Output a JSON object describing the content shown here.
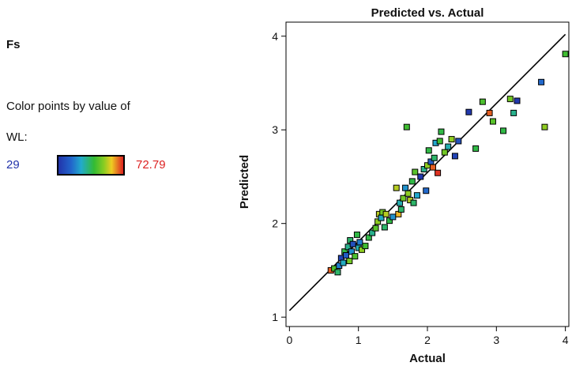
{
  "response": {
    "title": "Fs"
  },
  "legend": {
    "caption": "Color points by value of",
    "variable": "WL:",
    "min_label": "29",
    "max_label": "72.79",
    "min_value": 29,
    "max_value": 72.79,
    "colors": {
      "min": "#2233aa",
      "mid": "#33bb33",
      "max": "#dd2222"
    }
  },
  "chart_data": {
    "type": "scatter",
    "title": "Predicted vs. Actual",
    "xlabel": "Actual",
    "ylabel": "Predicted",
    "xlim": [
      -0.05,
      4.05
    ],
    "ylim": [
      0.9,
      4.15
    ],
    "xticks": [
      "0",
      "1",
      "2",
      "3",
      "4"
    ],
    "yticks": [
      "1",
      "2",
      "3",
      "4"
    ],
    "xtick_values": [
      0,
      1,
      2,
      3,
      4
    ],
    "ytick_values": [
      1,
      2,
      3,
      4
    ],
    "reference_line": {
      "from": [
        0,
        1.07
      ],
      "to": [
        4,
        4.02
      ]
    },
    "grid": false,
    "points": [
      {
        "x": 0.6,
        "y": 1.5,
        "c": 70
      },
      {
        "x": 0.65,
        "y": 1.52,
        "c": 55
      },
      {
        "x": 0.7,
        "y": 1.48,
        "c": 50
      },
      {
        "x": 0.72,
        "y": 1.55,
        "c": 40
      },
      {
        "x": 0.75,
        "y": 1.63,
        "c": 32
      },
      {
        "x": 0.78,
        "y": 1.58,
        "c": 45
      },
      {
        "x": 0.8,
        "y": 1.7,
        "c": 52
      },
      {
        "x": 0.82,
        "y": 1.66,
        "c": 36
      },
      {
        "x": 0.85,
        "y": 1.75,
        "c": 48
      },
      {
        "x": 0.87,
        "y": 1.6,
        "c": 58
      },
      {
        "x": 0.88,
        "y": 1.82,
        "c": 50
      },
      {
        "x": 0.9,
        "y": 1.7,
        "c": 42
      },
      {
        "x": 0.92,
        "y": 1.78,
        "c": 34
      },
      {
        "x": 0.95,
        "y": 1.65,
        "c": 55
      },
      {
        "x": 0.98,
        "y": 1.88,
        "c": 52
      },
      {
        "x": 1.0,
        "y": 1.74,
        "c": 46
      },
      {
        "x": 1.02,
        "y": 1.8,
        "c": 40
      },
      {
        "x": 1.05,
        "y": 1.72,
        "c": 60
      },
      {
        "x": 1.1,
        "y": 1.76,
        "c": 54
      },
      {
        "x": 1.15,
        "y": 1.85,
        "c": 52
      },
      {
        "x": 1.2,
        "y": 1.9,
        "c": 48
      },
      {
        "x": 1.25,
        "y": 1.95,
        "c": 56
      },
      {
        "x": 1.28,
        "y": 2.02,
        "c": 60
      },
      {
        "x": 1.3,
        "y": 2.1,
        "c": 62
      },
      {
        "x": 1.33,
        "y": 2.06,
        "c": 45
      },
      {
        "x": 1.35,
        "y": 2.12,
        "c": 58
      },
      {
        "x": 1.38,
        "y": 1.96,
        "c": 50
      },
      {
        "x": 1.4,
        "y": 2.1,
        "c": 62
      },
      {
        "x": 1.45,
        "y": 2.03,
        "c": 52
      },
      {
        "x": 1.5,
        "y": 2.07,
        "c": 42
      },
      {
        "x": 1.55,
        "y": 2.38,
        "c": 62
      },
      {
        "x": 1.58,
        "y": 2.1,
        "c": 66
      },
      {
        "x": 1.6,
        "y": 2.22,
        "c": 46
      },
      {
        "x": 1.62,
        "y": 2.15,
        "c": 50
      },
      {
        "x": 1.65,
        "y": 2.27,
        "c": 58
      },
      {
        "x": 1.68,
        "y": 2.38,
        "c": 42
      },
      {
        "x": 1.7,
        "y": 3.03,
        "c": 54
      },
      {
        "x": 1.72,
        "y": 2.32,
        "c": 60
      },
      {
        "x": 1.75,
        "y": 2.25,
        "c": 62
      },
      {
        "x": 1.78,
        "y": 2.45,
        "c": 52
      },
      {
        "x": 1.8,
        "y": 2.22,
        "c": 50
      },
      {
        "x": 1.82,
        "y": 2.55,
        "c": 56
      },
      {
        "x": 1.85,
        "y": 2.3,
        "c": 44
      },
      {
        "x": 1.9,
        "y": 2.5,
        "c": 30
      },
      {
        "x": 1.95,
        "y": 2.58,
        "c": 48
      },
      {
        "x": 1.98,
        "y": 2.35,
        "c": 38
      },
      {
        "x": 2.0,
        "y": 2.62,
        "c": 60
      },
      {
        "x": 2.02,
        "y": 2.78,
        "c": 52
      },
      {
        "x": 2.05,
        "y": 2.66,
        "c": 36
      },
      {
        "x": 2.08,
        "y": 2.6,
        "c": 70
      },
      {
        "x": 2.1,
        "y": 2.7,
        "c": 50
      },
      {
        "x": 2.12,
        "y": 2.86,
        "c": 44
      },
      {
        "x": 2.15,
        "y": 2.54,
        "c": 72
      },
      {
        "x": 2.18,
        "y": 2.88,
        "c": 54
      },
      {
        "x": 2.2,
        "y": 2.98,
        "c": 52
      },
      {
        "x": 2.25,
        "y": 2.76,
        "c": 58
      },
      {
        "x": 2.3,
        "y": 2.82,
        "c": 46
      },
      {
        "x": 2.35,
        "y": 2.9,
        "c": 60
      },
      {
        "x": 2.4,
        "y": 2.72,
        "c": 32
      },
      {
        "x": 2.45,
        "y": 2.88,
        "c": 34
      },
      {
        "x": 2.6,
        "y": 3.19,
        "c": 30
      },
      {
        "x": 2.7,
        "y": 2.8,
        "c": 52
      },
      {
        "x": 2.8,
        "y": 3.3,
        "c": 55
      },
      {
        "x": 2.9,
        "y": 3.18,
        "c": 70
      },
      {
        "x": 2.95,
        "y": 3.09,
        "c": 56
      },
      {
        "x": 3.1,
        "y": 2.99,
        "c": 52
      },
      {
        "x": 3.2,
        "y": 3.33,
        "c": 58
      },
      {
        "x": 3.25,
        "y": 3.18,
        "c": 48
      },
      {
        "x": 3.3,
        "y": 3.31,
        "c": 30
      },
      {
        "x": 3.65,
        "y": 3.51,
        "c": 38
      },
      {
        "x": 3.7,
        "y": 3.03,
        "c": 60
      },
      {
        "x": 4.0,
        "y": 3.81,
        "c": 54
      }
    ]
  }
}
